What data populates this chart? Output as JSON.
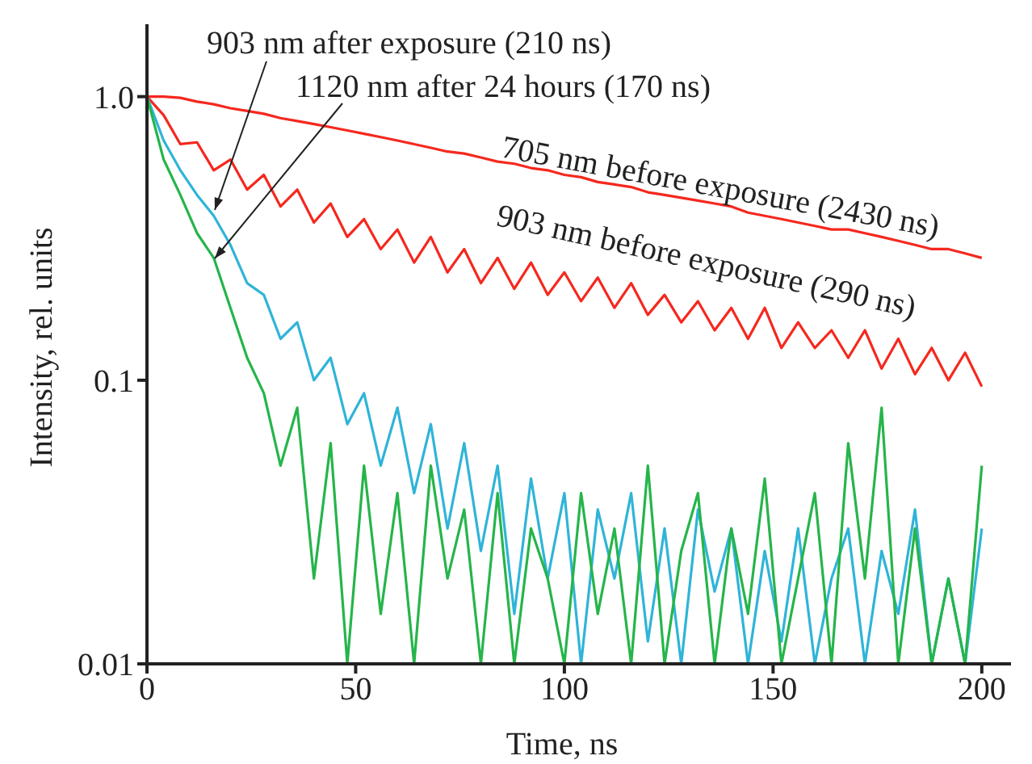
{
  "chart_data": {
    "type": "line",
    "xlabel": "Time, ns",
    "ylabel": "Intensity, rel. units",
    "log": "y",
    "xlim": [
      0,
      207
    ],
    "xticks": [
      0,
      50,
      100,
      150,
      200
    ],
    "ylim": [
      0.01,
      1.8
    ],
    "yticks": [
      0.01,
      0.1,
      {
        "value": 1,
        "label": "1.0"
      }
    ],
    "x": [
      0,
      4,
      8,
      12,
      16,
      20,
      24,
      28,
      32,
      36,
      40,
      44,
      48,
      52,
      56,
      60,
      64,
      68,
      72,
      76,
      80,
      84,
      88,
      92,
      96,
      100,
      104,
      108,
      112,
      116,
      120,
      124,
      128,
      132,
      136,
      140,
      144,
      148,
      152,
      156,
      160,
      164,
      168,
      172,
      176,
      180,
      184,
      188,
      192,
      196,
      200
    ],
    "series": [
      {
        "name": "705 nm before exposure (2430 ns)",
        "color": "#f5281e",
        "values": [
          1.0,
          1.0,
          0.99,
          0.96,
          0.94,
          0.91,
          0.89,
          0.87,
          0.84,
          0.82,
          0.8,
          0.78,
          0.76,
          0.74,
          0.72,
          0.7,
          0.68,
          0.66,
          0.64,
          0.63,
          0.61,
          0.59,
          0.58,
          0.56,
          0.55,
          0.53,
          0.52,
          0.5,
          0.49,
          0.48,
          0.46,
          0.45,
          0.44,
          0.43,
          0.42,
          0.41,
          0.39,
          0.38,
          0.37,
          0.36,
          0.35,
          0.34,
          0.34,
          0.33,
          0.32,
          0.31,
          0.3,
          0.29,
          0.29,
          0.28,
          0.27
        ]
      },
      {
        "name": "903 nm before exposure (290 ns)",
        "color": "#f5281e",
        "values": [
          1.0,
          0.86,
          0.68,
          0.69,
          0.55,
          0.6,
          0.47,
          0.53,
          0.41,
          0.47,
          0.36,
          0.42,
          0.32,
          0.37,
          0.29,
          0.34,
          0.26,
          0.32,
          0.24,
          0.29,
          0.22,
          0.27,
          0.21,
          0.26,
          0.2,
          0.24,
          0.19,
          0.23,
          0.18,
          0.22,
          0.17,
          0.2,
          0.16,
          0.19,
          0.15,
          0.18,
          0.14,
          0.18,
          0.13,
          0.16,
          0.13,
          0.15,
          0.12,
          0.15,
          0.11,
          0.14,
          0.105,
          0.13,
          0.1,
          0.125,
          0.095
        ]
      },
      {
        "name": "903 nm after exposure (210 ns)",
        "color": "#2fb4d8",
        "values": [
          1.0,
          0.7,
          0.55,
          0.45,
          0.38,
          0.3,
          0.22,
          0.2,
          0.14,
          0.16,
          0.1,
          0.12,
          0.07,
          0.09,
          0.05,
          0.08,
          0.04,
          0.07,
          0.03,
          0.06,
          0.025,
          0.05,
          0.015,
          0.045,
          0.02,
          0.04,
          0.01,
          0.035,
          0.02,
          0.04,
          0.012,
          0.03,
          0.01,
          0.035,
          0.018,
          0.03,
          0.01,
          0.025,
          0.012,
          0.03,
          0.01,
          0.02,
          0.03,
          0.01,
          0.025,
          0.015,
          0.035,
          0.01,
          0.02,
          0.01,
          0.03
        ]
      },
      {
        "name": "1120 nm after 24 hours (170 ns)",
        "color": "#25b54a",
        "values": [
          1.0,
          0.6,
          0.45,
          0.33,
          0.27,
          0.18,
          0.12,
          0.09,
          0.05,
          0.08,
          0.02,
          0.06,
          0.01,
          0.05,
          0.015,
          0.04,
          0.01,
          0.05,
          0.02,
          0.035,
          0.01,
          0.04,
          0.01,
          0.03,
          0.02,
          0.01,
          0.04,
          0.015,
          0.03,
          0.01,
          0.05,
          0.01,
          0.025,
          0.04,
          0.01,
          0.03,
          0.015,
          0.045,
          0.01,
          0.02,
          0.04,
          0.01,
          0.06,
          0.02,
          0.08,
          0.01,
          0.03,
          0.01,
          0.02,
          0.01,
          0.05
        ]
      }
    ]
  }
}
